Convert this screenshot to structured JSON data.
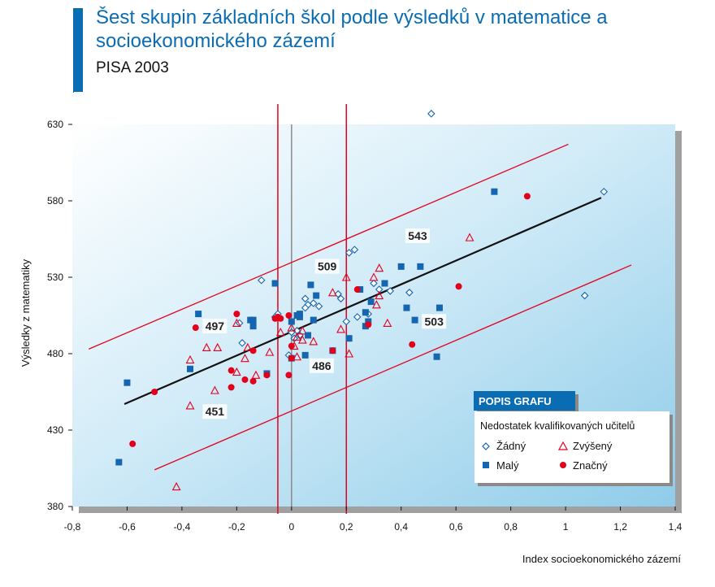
{
  "header": {
    "title": "Šest skupin základních škol podle výsledků v matematice a socioekonomického zázemí",
    "subtitle": "PISA 2003"
  },
  "colors": {
    "brand_blue": "#0a6db4",
    "accent_red": "#e3001b",
    "marker_blue": "#1565b0",
    "regression": "#111111"
  },
  "chart_data": {
    "type": "scatter",
    "xlabel": "Index socioekonomického zázemí",
    "ylabel": "Výsledky z matematiky",
    "xlim": [
      -0.8,
      1.4
    ],
    "ylim": [
      380,
      630
    ],
    "xticks": [
      -0.8,
      -0.6,
      -0.4,
      -0.2,
      0,
      0.2,
      0.4,
      0.6,
      0.8,
      1,
      1.2,
      1.4
    ],
    "xtick_labels": [
      "-0,8",
      "-0,6",
      "-0,4",
      "-0,2",
      "0",
      "0,2",
      "0,4",
      "0,6",
      "0,8",
      "1",
      "1,2",
      "1,4"
    ],
    "yticks": [
      380,
      430,
      480,
      530,
      580,
      630
    ],
    "ytick_labels": [
      "380",
      "430",
      "480",
      "530",
      "580",
      "630"
    ],
    "grid": false,
    "zero_line_x": 0,
    "vertical_lines_x": [
      -0.05,
      0.2
    ],
    "regression_line": [
      [
        -0.61,
        447
      ],
      [
        1.13,
        582
      ]
    ],
    "band_lines": [
      [
        [
          -0.74,
          483
        ],
        [
          1.01,
          617
        ]
      ],
      [
        [
          -0.5,
          404
        ],
        [
          1.24,
          538
        ]
      ]
    ],
    "group_labels": [
      {
        "text": "543",
        "x": 0.46,
        "y": 555
      },
      {
        "text": "509",
        "x": 0.13,
        "y": 535
      },
      {
        "text": "497",
        "x": -0.28,
        "y": 496
      },
      {
        "text": "503",
        "x": 0.52,
        "y": 499
      },
      {
        "text": "486",
        "x": 0.11,
        "y": 470
      },
      {
        "text": "451",
        "x": -0.28,
        "y": 440
      }
    ],
    "legend": {
      "header": "POPIS GRAFU",
      "title": "Nedostatek kvalifikovaných učitelů",
      "placement": "bottom-right"
    },
    "series": [
      {
        "name": "Žádný",
        "marker": "diamond-open",
        "points": [
          [
            0.51,
            637
          ],
          [
            1.14,
            586
          ],
          [
            0.23,
            548
          ],
          [
            0.21,
            546
          ],
          [
            -0.11,
            528
          ],
          [
            0.3,
            526
          ],
          [
            0.32,
            522
          ],
          [
            0.36,
            521
          ],
          [
            0.43,
            520
          ],
          [
            1.07,
            518
          ],
          [
            0.17,
            519
          ],
          [
            0.18,
            516
          ],
          [
            0.05,
            516
          ],
          [
            0.06,
            512
          ],
          [
            0.08,
            513
          ],
          [
            0.1,
            511
          ],
          [
            0.05,
            510
          ],
          [
            -0.05,
            506
          ],
          [
            -0.06,
            504
          ],
          [
            0.24,
            504
          ],
          [
            0.28,
            506
          ],
          [
            -0.19,
            500
          ],
          [
            -0.18,
            487
          ],
          [
            0.02,
            495
          ],
          [
            0.0,
            494
          ],
          [
            0.03,
            492
          ],
          [
            0.01,
            490
          ],
          [
            -0.01,
            479
          ],
          [
            0.2,
            501
          ]
        ]
      },
      {
        "name": "Zvýšený",
        "marker": "triangle-open",
        "points": [
          [
            0.65,
            556
          ],
          [
            0.32,
            536
          ],
          [
            0.2,
            530
          ],
          [
            0.3,
            530
          ],
          [
            0.32,
            518
          ],
          [
            0.31,
            512
          ],
          [
            0.15,
            520
          ],
          [
            0.35,
            500
          ],
          [
            -0.2,
            500
          ],
          [
            0.18,
            496
          ],
          [
            0.04,
            495
          ],
          [
            -0.04,
            494
          ],
          [
            0.02,
            491
          ],
          [
            0.04,
            489
          ],
          [
            0.08,
            488
          ],
          [
            -0.16,
            484
          ],
          [
            -0.17,
            477
          ],
          [
            -0.08,
            481
          ],
          [
            0.02,
            478
          ],
          [
            0.21,
            480
          ],
          [
            -0.31,
            484
          ],
          [
            -0.27,
            484
          ],
          [
            -0.37,
            476
          ],
          [
            -0.2,
            468
          ],
          [
            -0.13,
            466
          ],
          [
            -0.28,
            456
          ],
          [
            -0.37,
            446
          ],
          [
            -0.42,
            393
          ],
          [
            0.0,
            497
          ],
          [
            0.01,
            485
          ]
        ]
      },
      {
        "name": "Malý",
        "marker": "square",
        "points": [
          [
            0.74,
            586
          ],
          [
            0.4,
            537
          ],
          [
            0.47,
            537
          ],
          [
            0.34,
            526
          ],
          [
            -0.06,
            526
          ],
          [
            0.07,
            525
          ],
          [
            0.25,
            522
          ],
          [
            0.09,
            518
          ],
          [
            0.29,
            514
          ],
          [
            0.42,
            510
          ],
          [
            0.54,
            510
          ],
          [
            0.27,
            507
          ],
          [
            -0.34,
            506
          ],
          [
            0.03,
            506
          ],
          [
            0.02,
            505
          ],
          [
            0.03,
            504
          ],
          [
            -0.15,
            502
          ],
          [
            -0.14,
            502
          ],
          [
            -0.14,
            498
          ],
          [
            0.08,
            502
          ],
          [
            0.28,
            501
          ],
          [
            0.27,
            498
          ],
          [
            0.45,
            502
          ],
          [
            0.21,
            490
          ],
          [
            0.06,
            492
          ],
          [
            0.15,
            482
          ],
          [
            0.05,
            479
          ],
          [
            0.53,
            478
          ],
          [
            -0.37,
            470
          ],
          [
            0.0,
            477
          ],
          [
            -0.09,
            467
          ],
          [
            -0.6,
            461
          ],
          [
            -0.63,
            409
          ],
          [
            0.0,
            501
          ]
        ]
      },
      {
        "name": "Značný",
        "marker": "circle",
        "points": [
          [
            0.86,
            583
          ],
          [
            0.61,
            524
          ],
          [
            0.24,
            522
          ],
          [
            -0.2,
            506
          ],
          [
            -0.05,
            504
          ],
          [
            -0.06,
            503
          ],
          [
            -0.04,
            503
          ],
          [
            -0.01,
            505
          ],
          [
            -0.35,
            497
          ],
          [
            0.28,
            499
          ],
          [
            0.44,
            486
          ],
          [
            0.0,
            485
          ],
          [
            -0.14,
            482
          ],
          [
            0.15,
            482
          ],
          [
            0.0,
            477
          ],
          [
            -0.22,
            469
          ],
          [
            -0.17,
            463
          ],
          [
            -0.14,
            462
          ],
          [
            -0.09,
            466
          ],
          [
            -0.01,
            466
          ],
          [
            -0.22,
            458
          ],
          [
            -0.5,
            455
          ],
          [
            -0.58,
            421
          ]
        ]
      }
    ]
  }
}
